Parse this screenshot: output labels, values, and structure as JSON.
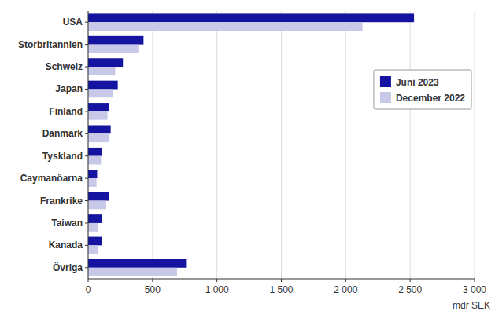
{
  "chart_data": {
    "type": "bar",
    "orientation": "horizontal",
    "categories": [
      "Övriga",
      "Kanada",
      "Taiwan",
      "Frankrike",
      "Caymanöarna",
      "Tyskland",
      "Danmark",
      "Finland",
      "Japan",
      "Schweiz",
      "Storbritannien",
      "USA"
    ],
    "series": [
      {
        "name": "Juni 2023",
        "color": "#1414a0",
        "values": [
          760,
          105,
          110,
          165,
          70,
          110,
          175,
          160,
          230,
          270,
          430,
          2530
        ]
      },
      {
        "name": "December 2022",
        "color": "#c8c8e8",
        "values": [
          690,
          75,
          75,
          140,
          65,
          100,
          160,
          150,
          195,
          210,
          390,
          2130
        ]
      }
    ],
    "xlabel": "mdr SEK",
    "xlim": [
      0,
      3000
    ],
    "xticks": [
      0,
      500,
      {
        "value": 1000,
        "label": "1 000"
      },
      {
        "value": 1500,
        "label": "1 500"
      },
      {
        "value": 2000,
        "label": "2 000"
      },
      {
        "value": 2500,
        "label": "2 500"
      },
      {
        "value": 3000,
        "label": "3 000"
      }
    ],
    "grid": true,
    "legend": "upper right"
  }
}
